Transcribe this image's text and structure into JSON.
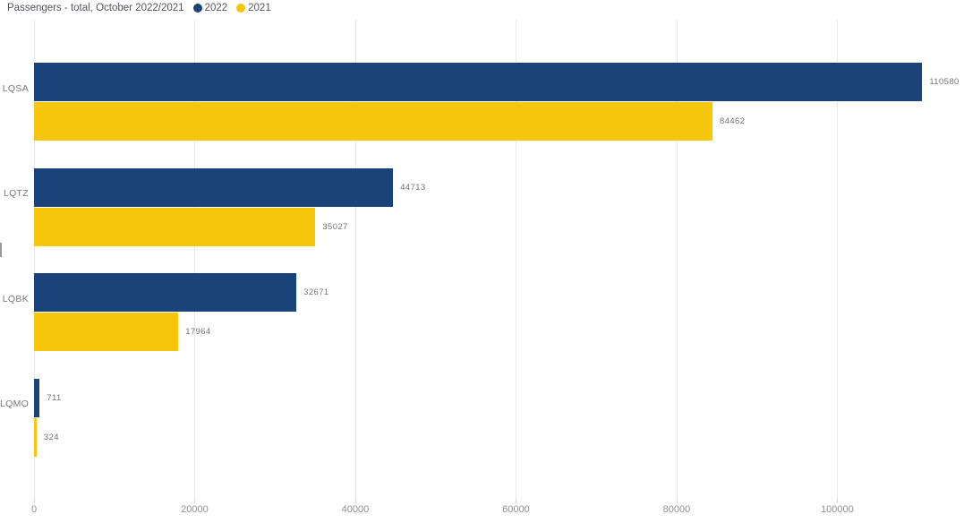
{
  "header": {
    "title": "Passengers - total, October 2022/2021"
  },
  "colors": {
    "background": "#FFFFFF",
    "series-2022": "#1A437A",
    "series-2021": "#F6C60A",
    "title-text": "#55555E",
    "category-text": "#77777E",
    "data-label-text": "#73737B",
    "tick-text": "#8F8F8F",
    "gridline": "#E9E9E9"
  },
  "chart_data": {
    "type": "bar",
    "orientation": "horizontal",
    "title": "Passengers - total, October 2022/2021",
    "categories": [
      "LQSA",
      "LQTZ",
      "LQBK",
      "LQMO"
    ],
    "series": [
      {
        "name": "2022",
        "color": "#1A437A",
        "values": [
          110580,
          44713,
          32671,
          711
        ]
      },
      {
        "name": "2021",
        "color": "#F6C60A",
        "values": [
          84462,
          35027,
          17964,
          324
        ]
      }
    ],
    "xticks": [
      0,
      20000,
      40000,
      60000,
      80000,
      100000
    ],
    "xlim": [
      0,
      115000
    ],
    "ylabel": "",
    "xlabel": "",
    "legend_position": "top",
    "grid": true,
    "data_labels": true
  }
}
